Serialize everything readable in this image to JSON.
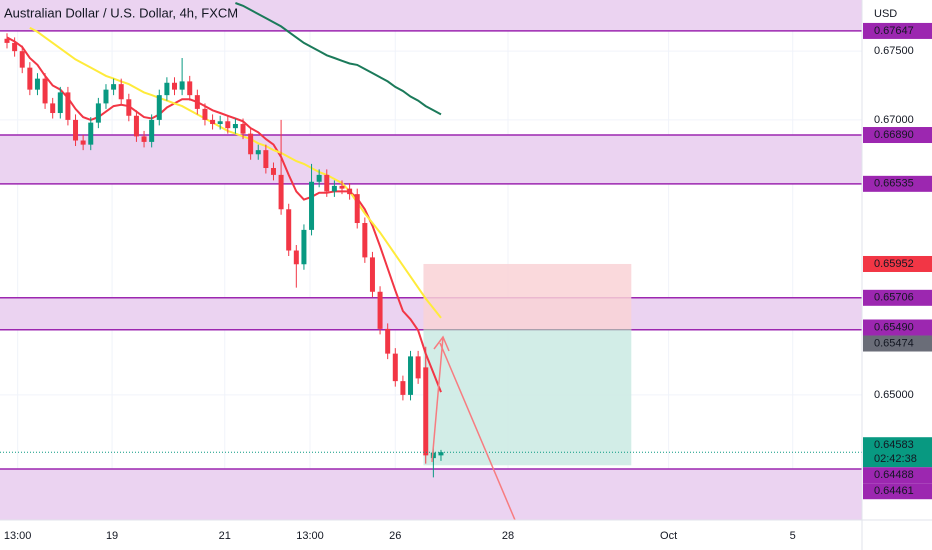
{
  "chart_data": {
    "type": "candlestick",
    "title": "Australian Dollar / U.S. Dollar, 4h, FXCM",
    "currency": "USD",
    "xlim": [
      -0.92,
      112.3
    ],
    "xticks": [
      {
        "value": 1.4,
        "label": "13:00"
      },
      {
        "value": 13.8,
        "label": "19"
      },
      {
        "value": 28.6,
        "label": "21"
      },
      {
        "value": 39.8,
        "label": "13:00"
      },
      {
        "value": 51.0,
        "label": "26"
      },
      {
        "value": 65.8,
        "label": "28"
      },
      {
        "value": 86.9,
        "label": "Oct"
      },
      {
        "value": 103.2,
        "label": "5"
      }
    ],
    "ylim": [
      0.6409,
      0.67872
    ],
    "yticks": [
      {
        "value": 0.675,
        "label": "0.67500"
      },
      {
        "value": 0.67,
        "label": "0.67000"
      },
      {
        "value": 0.65,
        "label": "0.65000"
      }
    ],
    "grid": true,
    "up_color": "#089981",
    "down_color": "#f23645",
    "open": [
      0.6759,
      0.6756,
      0.675,
      0.6738,
      0.6722,
      0.673,
      0.6712,
      0.6705,
      0.672,
      0.67,
      0.6685,
      0.6682,
      0.6698,
      0.6712,
      0.6722,
      0.6726,
      0.6715,
      0.6703,
      0.6688,
      0.6684,
      0.67,
      0.6718,
      0.6727,
      0.6722,
      0.6728,
      0.6718,
      0.6708,
      0.67,
      0.6697,
      0.6699,
      0.6694,
      0.6697,
      0.669,
      0.6675,
      0.6678,
      0.6665,
      0.666,
      0.6635,
      0.6605,
      0.6595,
      0.662,
      0.6655,
      0.666,
      0.6648,
      0.6652,
      0.665,
      0.6646,
      0.6625,
      0.66,
      0.6575,
      0.6548,
      0.653,
      0.651,
      0.65,
      0.6528,
      0.652,
      0.6454,
      0.6456
    ],
    "high": [
      0.6763,
      0.676,
      0.6754,
      0.6742,
      0.6734,
      0.6734,
      0.6716,
      0.6724,
      0.6724,
      0.6704,
      0.6689,
      0.6702,
      0.6716,
      0.6726,
      0.673,
      0.673,
      0.6719,
      0.6707,
      0.6692,
      0.6704,
      0.6722,
      0.6731,
      0.6731,
      0.6745,
      0.6732,
      0.6722,
      0.6712,
      0.6704,
      0.6703,
      0.6703,
      0.6701,
      0.6701,
      0.6694,
      0.6682,
      0.6682,
      0.6669,
      0.67,
      0.6639,
      0.6609,
      0.6624,
      0.6668,
      0.6664,
      0.6664,
      0.6656,
      0.6656,
      0.6654,
      0.665,
      0.6629,
      0.6604,
      0.6579,
      0.6552,
      0.6534,
      0.6514,
      0.6532,
      0.6532,
      0.6535,
      0.6462,
      0.646
    ],
    "low": [
      0.6752,
      0.6746,
      0.6734,
      0.6718,
      0.6718,
      0.6708,
      0.6701,
      0.6701,
      0.6696,
      0.6681,
      0.6678,
      0.6678,
      0.6694,
      0.6708,
      0.6718,
      0.6711,
      0.6699,
      0.6684,
      0.668,
      0.668,
      0.6696,
      0.6714,
      0.6718,
      0.6718,
      0.6714,
      0.6704,
      0.6696,
      0.6693,
      0.6693,
      0.669,
      0.669,
      0.6686,
      0.6671,
      0.6671,
      0.6661,
      0.6656,
      0.6631,
      0.6601,
      0.6578,
      0.6591,
      0.6616,
      0.6651,
      0.6644,
      0.6644,
      0.6646,
      0.6642,
      0.6621,
      0.6596,
      0.6571,
      0.6544,
      0.6526,
      0.6506,
      0.6496,
      0.6496,
      0.6508,
      0.645,
      0.644,
      0.6452
    ],
    "close": [
      0.6756,
      0.675,
      0.6738,
      0.6722,
      0.673,
      0.6712,
      0.6705,
      0.672,
      0.67,
      0.6685,
      0.6682,
      0.6698,
      0.6712,
      0.6722,
      0.6726,
      0.6715,
      0.6703,
      0.6688,
      0.6684,
      0.67,
      0.6718,
      0.6727,
      0.6722,
      0.6728,
      0.6718,
      0.6708,
      0.67,
      0.6697,
      0.6699,
      0.6694,
      0.6697,
      0.669,
      0.6675,
      0.6678,
      0.6665,
      0.666,
      0.6635,
      0.6605,
      0.6595,
      0.662,
      0.6655,
      0.666,
      0.6648,
      0.6652,
      0.665,
      0.6646,
      0.6625,
      0.66,
      0.6575,
      0.6548,
      0.653,
      0.651,
      0.65,
      0.6528,
      0.6512,
      0.6456,
      0.6458,
      0.64583
    ],
    "lines": [
      {
        "color": "#f23645",
        "values": [
          0.676,
          0.6757,
          0.6753,
          0.6745,
          0.674,
          0.6732,
          0.6725,
          0.6722,
          0.6716,
          0.6708,
          0.6702,
          0.67,
          0.6702,
          0.6706,
          0.671,
          0.6711,
          0.671,
          0.6706,
          0.6702,
          0.6701,
          0.6704,
          0.6709,
          0.6712,
          0.6715,
          0.6715,
          0.6713,
          0.671,
          0.6707,
          0.6705,
          0.6703,
          0.6701,
          0.6699,
          0.6694,
          0.6691,
          0.6686,
          0.6682,
          0.6673,
          0.666,
          0.6648,
          0.6642,
          0.6644,
          0.6647,
          0.6647,
          0.6648,
          0.6648,
          0.6648,
          0.6643,
          0.6635,
          0.6623,
          0.6608,
          0.6592,
          0.6576,
          0.6561,
          0.6555,
          0.6547,
          0.653,
          0.6516,
          0.6502
        ]
      },
      {
        "color": "#ffeb3b",
        "values": [
          null,
          null,
          null,
          0.6767,
          0.6764,
          0.676,
          0.6756,
          0.6752,
          0.6748,
          0.6744,
          0.6741,
          0.6738,
          0.6735,
          0.6732,
          0.673,
          0.6728,
          0.6726,
          0.6723,
          0.672,
          0.6718,
          0.6716,
          0.6714,
          0.6712,
          0.671,
          0.6707,
          0.6704,
          0.6701,
          0.6698,
          0.6695,
          0.6692,
          0.669,
          0.6688,
          0.6686,
          0.6683,
          0.6681,
          0.6678,
          0.6676,
          0.6673,
          0.667,
          0.6668,
          0.6665,
          0.6662,
          0.666,
          0.6657,
          0.6654,
          0.6648,
          0.664,
          0.6632,
          0.6625,
          0.6618,
          0.661,
          0.6602,
          0.6594,
          0.6586,
          0.6578,
          0.657,
          0.6563,
          0.6556
        ]
      },
      {
        "color": "#1b7a5a",
        "values": [
          null,
          null,
          null,
          null,
          null,
          null,
          null,
          null,
          null,
          null,
          null,
          null,
          null,
          null,
          null,
          null,
          null,
          null,
          null,
          null,
          null,
          null,
          null,
          null,
          null,
          null,
          null,
          null,
          null,
          null,
          0.6785,
          0.6783,
          0.678,
          0.6777,
          0.6774,
          0.6771,
          0.6768,
          0.6764,
          0.676,
          0.6756,
          0.6753,
          0.675,
          0.6747,
          0.6745,
          0.6743,
          0.6741,
          0.674,
          0.6737,
          0.6734,
          0.6731,
          0.6728,
          0.6724,
          0.6721,
          0.6717,
          0.6714,
          0.671,
          0.6707,
          0.6704
        ]
      }
    ],
    "zone_color": "#ebd3f1",
    "zones": [
      [
        0.67647,
        0.67872
      ],
      [
        0.66535,
        0.6689
      ],
      [
        0.65474,
        0.65706
      ],
      [
        0.6409,
        0.64461
      ]
    ],
    "level_color": "#9c27b0",
    "levels": [
      0.67647,
      0.6689,
      0.66535,
      0.65706,
      0.65474,
      0.64461
    ],
    "position": {
      "start": 54.7,
      "end": 82.0,
      "stop": 0.65952,
      "entry": 0.65474,
      "target": 0.64488,
      "stop_color": "#f9d2d6",
      "target_color": "#cdebe4"
    },
    "axis_labels": [
      {
        "value": 0.67647,
        "color": "#9c27b0"
      },
      {
        "value": 0.6689,
        "label": "0.66890",
        "color": "#9c27b0"
      },
      {
        "value": 0.66535,
        "color": "#9c27b0"
      },
      {
        "value": 0.65952,
        "color": "#f23645"
      },
      {
        "value": 0.65706,
        "color": "#9c27b0"
      },
      {
        "value": 0.6549,
        "label": "0.65490",
        "color": "#9c27b0"
      },
      {
        "value": 0.65474,
        "color": "#6a6d78"
      },
      {
        "value": 0.64583,
        "color": "#089981",
        "countdown": "02:42:38"
      },
      {
        "value": 0.64488,
        "color": "#9c27b0"
      },
      {
        "value": 0.64461,
        "color": "#9c27b0"
      }
    ]
  }
}
